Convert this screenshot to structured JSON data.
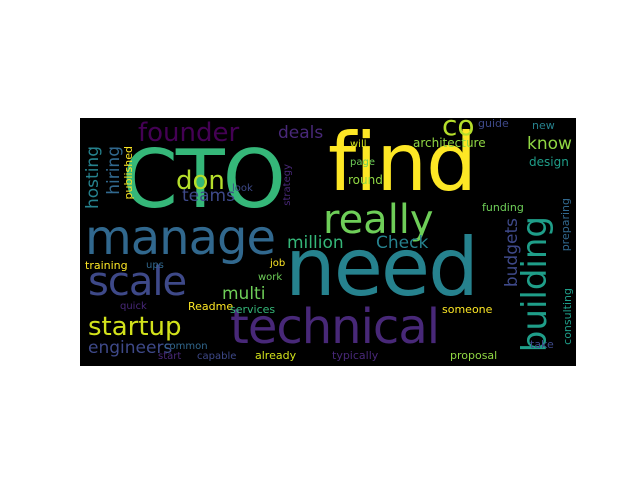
{
  "background_color": "#000000",
  "words": [
    {
      "text": "CTO",
      "color": "#35b779"
    },
    {
      "text": "find",
      "color": "#fde725"
    },
    {
      "text": "need",
      "color": "#26828e"
    },
    {
      "text": "manage",
      "color": "#31688e"
    },
    {
      "text": "technical",
      "color": "#482878"
    },
    {
      "text": "really",
      "color": "#6ece58"
    },
    {
      "text": "scale",
      "color": "#3e4989"
    },
    {
      "text": "building",
      "color": "#1f9e89"
    },
    {
      "text": "founder",
      "color": "#440154"
    },
    {
      "text": "startup",
      "color": "#d2e21b"
    },
    {
      "text": "don",
      "color": "#b5de2b"
    },
    {
      "text": "co",
      "color": "#b5de2b"
    },
    {
      "text": "teams",
      "color": "#3e4989"
    },
    {
      "text": "multi",
      "color": "#6ece58"
    },
    {
      "text": "deals",
      "color": "#482878"
    },
    {
      "text": "million",
      "color": "#35b779"
    },
    {
      "text": "Check",
      "color": "#26828e"
    },
    {
      "text": "budgets",
      "color": "#3e4989"
    },
    {
      "text": "know",
      "color": "#90d743"
    },
    {
      "text": "engineers",
      "color": "#3e4989"
    },
    {
      "text": "hiring",
      "color": "#31688e"
    },
    {
      "text": "hosting",
      "color": "#26828e"
    },
    {
      "text": "architecture",
      "color": "#90d743"
    },
    {
      "text": "round",
      "color": "#90d743"
    },
    {
      "text": "design",
      "color": "#1f9e89"
    },
    {
      "text": "funding",
      "color": "#6ece58"
    },
    {
      "text": "preparing",
      "color": "#31688e"
    },
    {
      "text": "consulting",
      "color": "#1f9e89"
    },
    {
      "text": "published",
      "color": "#fde725"
    },
    {
      "text": "training",
      "color": "#fde725"
    },
    {
      "text": "Readme",
      "color": "#fde725"
    },
    {
      "text": "services",
      "color": "#35b779"
    },
    {
      "text": "already",
      "color": "#d2e21b"
    },
    {
      "text": "typically",
      "color": "#482878"
    },
    {
      "text": "proposal",
      "color": "#90d743"
    },
    {
      "text": "someone",
      "color": "#fde725"
    },
    {
      "text": "take",
      "color": "#3e4989"
    },
    {
      "text": "guide",
      "color": "#3e4989"
    },
    {
      "text": "new",
      "color": "#26828e"
    },
    {
      "text": "will",
      "color": "#d2e21b"
    },
    {
      "text": "page",
      "color": "#6ece58"
    },
    {
      "text": "look",
      "color": "#3e4989"
    },
    {
      "text": "strategy",
      "color": "#482878"
    },
    {
      "text": "job",
      "color": "#fde725"
    },
    {
      "text": "work",
      "color": "#6ece58"
    },
    {
      "text": "quick",
      "color": "#482878"
    },
    {
      "text": "ups",
      "color": "#31688e"
    },
    {
      "text": "common",
      "color": "#31688e"
    },
    {
      "text": "start",
      "color": "#482878"
    },
    {
      "text": "capable",
      "color": "#3e4989"
    },
    {
      "text": "the",
      "color": "#440154"
    }
  ]
}
